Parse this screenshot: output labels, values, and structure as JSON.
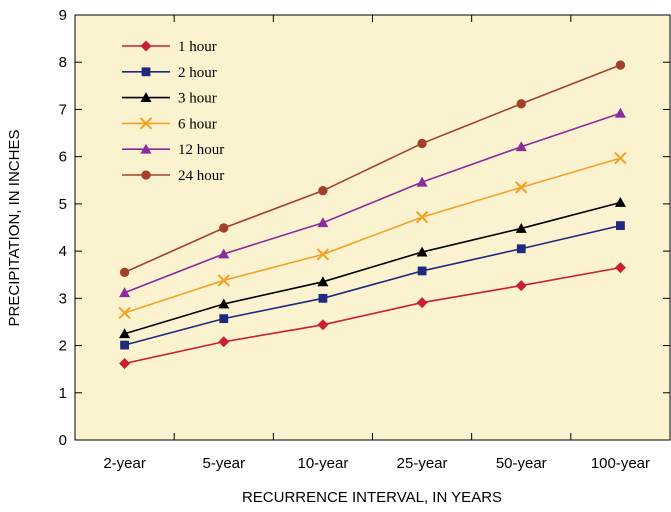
{
  "chart_data": {
    "type": "line",
    "xlabel": "RECURRENCE  INTERVAL, IN YEARS",
    "ylabel": "PRECIPITATION, IN INCHES",
    "categories": [
      "2-year",
      "5-year",
      "10-year",
      "25-year",
      "50-year",
      "100-year"
    ],
    "ylim": [
      0,
      9
    ],
    "yticks": [
      "0",
      "1",
      "2",
      "3",
      "4",
      "5",
      "6",
      "7",
      "8",
      "9"
    ],
    "background": "#fbf3d0",
    "grid": false,
    "legend_position": "top-left",
    "series": [
      {
        "name": "1 hour",
        "color": "#c8202e",
        "marker": "diamond",
        "values": [
          1.62,
          2.08,
          2.44,
          2.91,
          3.27,
          3.65
        ]
      },
      {
        "name": "2 hour",
        "color": "#1f2a7a",
        "marker": "square",
        "values": [
          2.01,
          2.57,
          3.0,
          3.58,
          4.05,
          4.54
        ]
      },
      {
        "name": "3 hour",
        "color": "#000000",
        "marker": "triangle",
        "values": [
          2.25,
          2.88,
          3.35,
          3.98,
          4.48,
          5.03
        ]
      },
      {
        "name": "6 hour",
        "color": "#f5a023",
        "marker": "x",
        "values": [
          2.69,
          3.38,
          3.93,
          4.72,
          5.35,
          5.97
        ]
      },
      {
        "name": "12 hour",
        "color": "#8b2b9c",
        "marker": "triangle",
        "values": [
          3.12,
          3.94,
          4.6,
          5.46,
          6.21,
          6.92
        ]
      },
      {
        "name": "24 hour",
        "color": "#a3402a",
        "marker": "circle",
        "values": [
          3.55,
          4.49,
          5.28,
          6.28,
          7.12,
          7.94
        ]
      }
    ]
  }
}
